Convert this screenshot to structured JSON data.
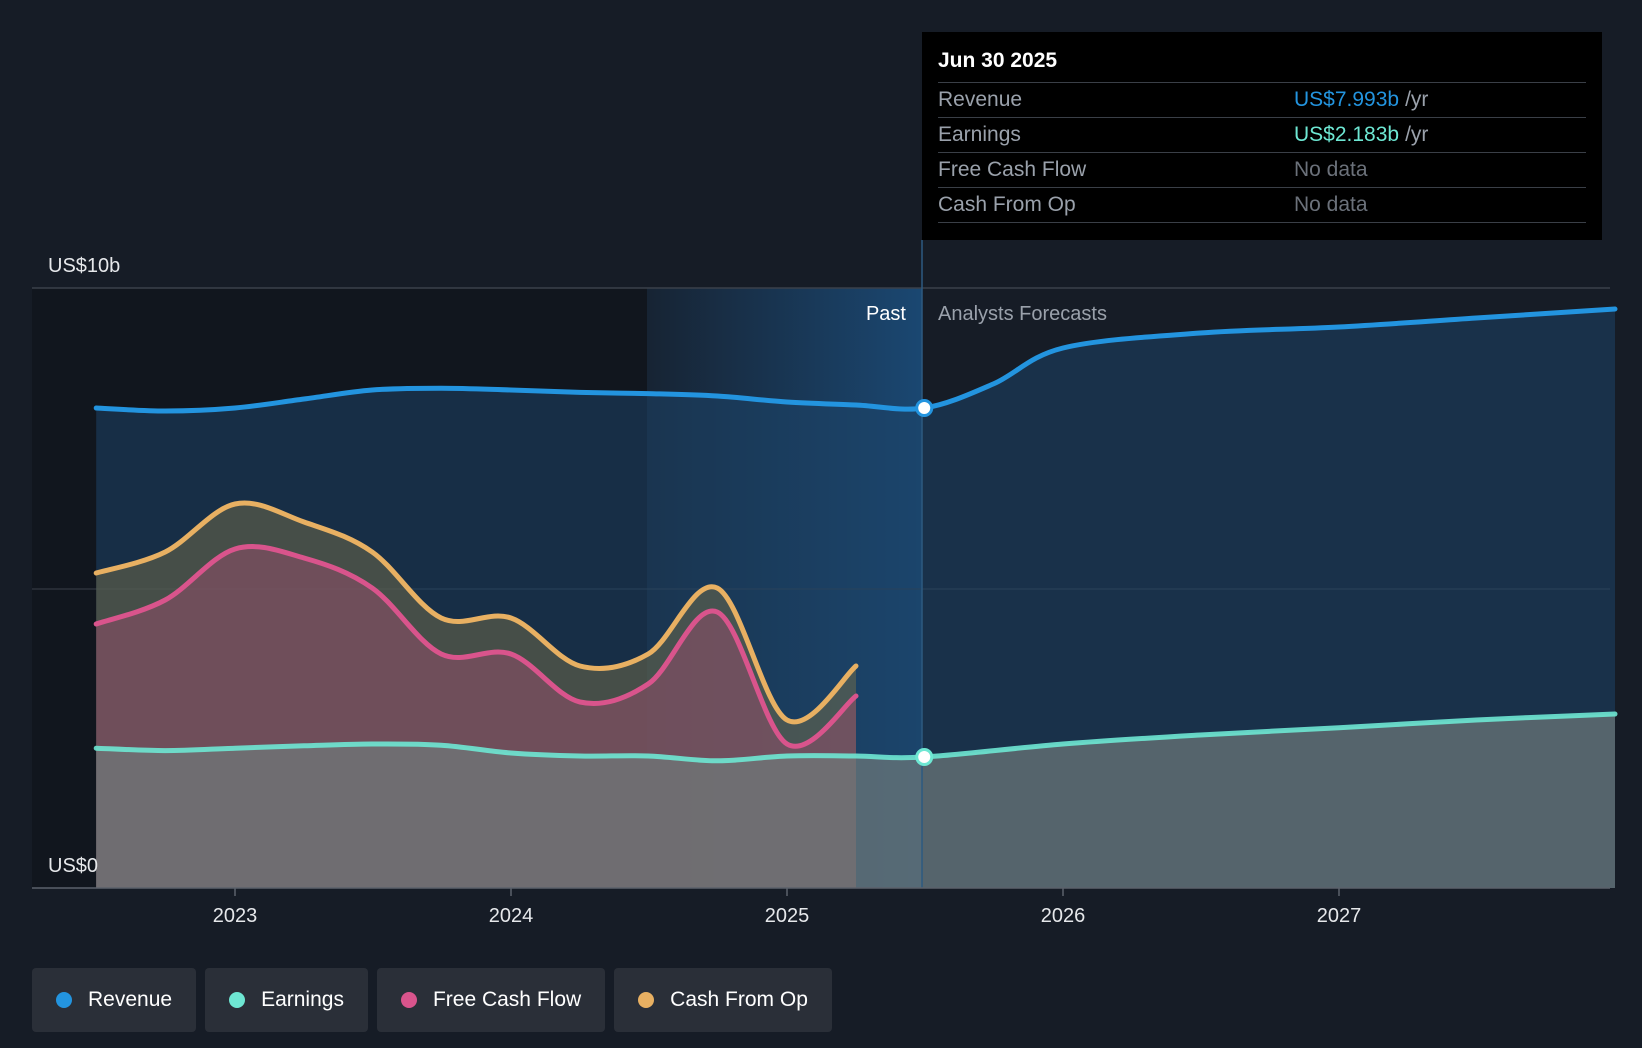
{
  "chart_data": {
    "type": "line",
    "y_axis": {
      "top_label": "US$10b",
      "bottom_label": "US$0",
      "ylim": [
        0,
        10
      ],
      "unit": "US$b"
    },
    "x_axis": {
      "ticks": [
        "2023",
        "2024",
        "2025",
        "2026",
        "2027"
      ],
      "xlim": [
        "2022-04",
        "2027-12"
      ]
    },
    "past_label": "Past",
    "forecast_label": "Analysts Forecasts",
    "divider_date": "2025-06-30",
    "series": [
      {
        "name": "Revenue",
        "color": "#2394df",
        "points": [
          [
            "2022-06-30",
            8.0
          ],
          [
            "2022-09-30",
            7.95
          ],
          [
            "2022-12-31",
            8.0
          ],
          [
            "2023-03-31",
            8.15
          ],
          [
            "2023-06-30",
            8.3
          ],
          [
            "2023-09-30",
            8.33
          ],
          [
            "2023-12-31",
            8.3
          ],
          [
            "2024-03-31",
            8.26
          ],
          [
            "2024-06-30",
            8.24
          ],
          [
            "2024-09-30",
            8.2
          ],
          [
            "2024-12-31",
            8.1
          ],
          [
            "2025-03-31",
            8.05
          ],
          [
            "2025-06-30",
            8.0
          ],
          [
            "2025-09-30",
            8.4
          ],
          [
            "2025-12-31",
            9.0
          ],
          [
            "2026-06-30",
            9.25
          ],
          [
            "2026-12-31",
            9.35
          ],
          [
            "2027-06-30",
            9.5
          ],
          [
            "2027-12-31",
            9.65
          ]
        ]
      },
      {
        "name": "Earnings",
        "color": "#6ee7d3",
        "points": [
          [
            "2022-06-30",
            2.33
          ],
          [
            "2022-09-30",
            2.29
          ],
          [
            "2022-12-31",
            2.33
          ],
          [
            "2023-03-31",
            2.37
          ],
          [
            "2023-06-30",
            2.4
          ],
          [
            "2023-09-30",
            2.38
          ],
          [
            "2023-12-31",
            2.25
          ],
          [
            "2024-03-31",
            2.2
          ],
          [
            "2024-06-30",
            2.2
          ],
          [
            "2024-09-30",
            2.12
          ],
          [
            "2024-12-31",
            2.2
          ],
          [
            "2025-03-31",
            2.2
          ],
          [
            "2025-06-30",
            2.183
          ],
          [
            "2025-12-31",
            2.4
          ],
          [
            "2026-06-30",
            2.55
          ],
          [
            "2026-12-31",
            2.67
          ],
          [
            "2027-06-30",
            2.8
          ],
          [
            "2027-12-31",
            2.9
          ]
        ]
      },
      {
        "name": "Free Cash Flow",
        "color": "#d9548c",
        "points": [
          [
            "2022-06-30",
            4.4
          ],
          [
            "2022-09-30",
            4.8
          ],
          [
            "2022-12-31",
            5.65
          ],
          [
            "2023-03-31",
            5.5
          ],
          [
            "2023-06-30",
            5.0
          ],
          [
            "2023-09-30",
            3.9
          ],
          [
            "2023-12-31",
            3.9
          ],
          [
            "2024-03-31",
            3.1
          ],
          [
            "2024-06-30",
            3.4
          ],
          [
            "2024-09-30",
            4.6
          ],
          [
            "2024-12-31",
            2.4
          ],
          [
            "2025-03-31",
            3.2
          ]
        ]
      },
      {
        "name": "Cash From Op",
        "color": "#e8b062",
        "points": [
          [
            "2022-06-30",
            5.25
          ],
          [
            "2022-09-30",
            5.6
          ],
          [
            "2022-12-31",
            6.4
          ],
          [
            "2023-03-31",
            6.1
          ],
          [
            "2023-06-30",
            5.6
          ],
          [
            "2023-09-30",
            4.5
          ],
          [
            "2023-12-31",
            4.5
          ],
          [
            "2024-03-31",
            3.7
          ],
          [
            "2024-06-30",
            3.9
          ],
          [
            "2024-09-30",
            5.0
          ],
          [
            "2024-12-31",
            2.8
          ],
          [
            "2025-03-31",
            3.7
          ]
        ]
      }
    ]
  },
  "tooltip": {
    "date": "Jun 30 2025",
    "rows": [
      {
        "label": "Revenue",
        "value": "US$7.993b",
        "unit": "/yr",
        "color": "#2394df"
      },
      {
        "label": "Earnings",
        "value": "US$2.183b",
        "unit": "/yr",
        "color": "#6ee7d3"
      },
      {
        "label": "Free Cash Flow",
        "value": "No data",
        "unit": "",
        "color": ""
      },
      {
        "label": "Cash From Op",
        "value": "No data",
        "unit": "",
        "color": ""
      }
    ]
  },
  "legend": [
    {
      "label": "Revenue",
      "color": "#2394df"
    },
    {
      "label": "Earnings",
      "color": "#6ee7d3"
    },
    {
      "label": "Free Cash Flow",
      "color": "#d9548c"
    },
    {
      "label": "Cash From Op",
      "color": "#e8b062"
    }
  ]
}
